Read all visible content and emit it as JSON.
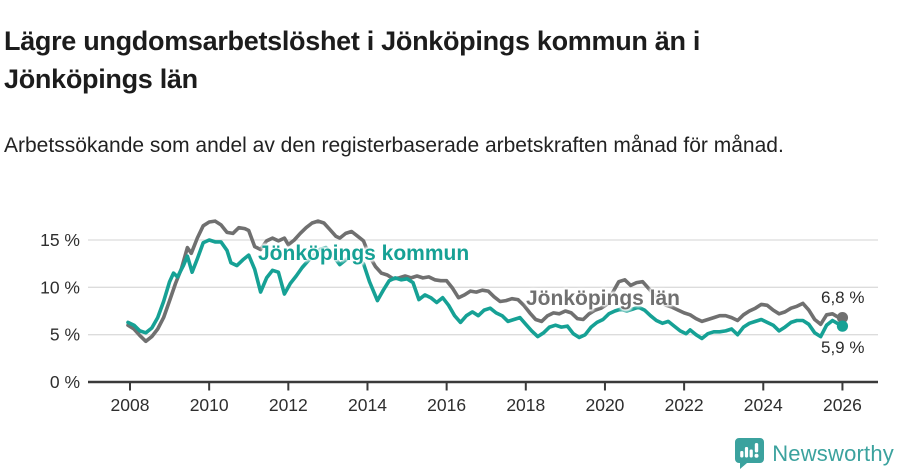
{
  "header": {
    "title_lines": [
      "Lägre ungdomsarbetslöshet i Jönköpings kommun än i",
      "Jönköpings län"
    ],
    "subtitle": "Arbetssökande som andel av den registerbaserade arbetskraften månad för månad."
  },
  "colors": {
    "accent_teal": "#16a195",
    "line_gray": "#707070",
    "grid": "#dcdcdc",
    "axis": "#3a3a3a",
    "tick_text": "#2e2e2e",
    "brand_teal": "#3ba29e"
  },
  "chart_data": {
    "type": "line",
    "x_ticks": [
      2008,
      2010,
      2012,
      2014,
      2016,
      2018,
      2020,
      2022,
      2024,
      2026
    ],
    "x_tick_labels": [
      "2008",
      "2010",
      "2012",
      "2014",
      "2016",
      "2018",
      "2020",
      "2022",
      "2024",
      "2026"
    ],
    "y_ticks": [
      0,
      5,
      10,
      15
    ],
    "y_tick_labels": [
      "0 %",
      "5 %",
      "10 %",
      "15 %"
    ],
    "xlim": [
      2007.9,
      2026.9
    ],
    "ylim": [
      0,
      18
    ],
    "grid": "horizontal",
    "legend_position": "inline-labels",
    "series": [
      {
        "name": "Jönköpings län",
        "color": "#707070",
        "end_label": "6,8 %",
        "end_value": 6.8,
        "points": [
          [
            2007.95,
            6.0
          ],
          [
            2008.1,
            5.6
          ],
          [
            2008.25,
            4.9
          ],
          [
            2008.4,
            4.3
          ],
          [
            2008.55,
            4.8
          ],
          [
            2008.7,
            5.6
          ],
          [
            2008.85,
            6.8
          ],
          [
            2009.0,
            8.6
          ],
          [
            2009.15,
            10.4
          ],
          [
            2009.3,
            12.0
          ],
          [
            2009.45,
            14.2
          ],
          [
            2009.55,
            13.6
          ],
          [
            2009.7,
            15.2
          ],
          [
            2009.85,
            16.5
          ],
          [
            2010.0,
            16.9
          ],
          [
            2010.15,
            17.0
          ],
          [
            2010.3,
            16.6
          ],
          [
            2010.45,
            15.8
          ],
          [
            2010.6,
            15.7
          ],
          [
            2010.75,
            16.3
          ],
          [
            2010.9,
            16.2
          ],
          [
            2011.0,
            16.0
          ],
          [
            2011.15,
            14.3
          ],
          [
            2011.3,
            14.0
          ],
          [
            2011.45,
            14.9
          ],
          [
            2011.6,
            15.2
          ],
          [
            2011.75,
            14.9
          ],
          [
            2011.9,
            15.2
          ],
          [
            2012.0,
            14.5
          ],
          [
            2012.15,
            15.0
          ],
          [
            2012.3,
            15.7
          ],
          [
            2012.45,
            16.3
          ],
          [
            2012.6,
            16.8
          ],
          [
            2012.75,
            17.0
          ],
          [
            2012.9,
            16.8
          ],
          [
            2013.05,
            16.1
          ],
          [
            2013.2,
            15.4
          ],
          [
            2013.3,
            15.2
          ],
          [
            2013.45,
            15.7
          ],
          [
            2013.6,
            15.9
          ],
          [
            2013.75,
            15.4
          ],
          [
            2013.9,
            14.9
          ],
          [
            2014.05,
            13.3
          ],
          [
            2014.2,
            12.2
          ],
          [
            2014.35,
            11.5
          ],
          [
            2014.5,
            11.3
          ],
          [
            2014.65,
            10.9
          ],
          [
            2014.8,
            11.0
          ],
          [
            2014.95,
            11.2
          ],
          [
            2015.1,
            11.0
          ],
          [
            2015.25,
            11.2
          ],
          [
            2015.4,
            11.0
          ],
          [
            2015.55,
            11.1
          ],
          [
            2015.7,
            10.8
          ],
          [
            2015.85,
            10.7
          ],
          [
            2016.0,
            10.7
          ],
          [
            2016.15,
            9.9
          ],
          [
            2016.3,
            8.9
          ],
          [
            2016.45,
            9.2
          ],
          [
            2016.6,
            9.6
          ],
          [
            2016.75,
            9.5
          ],
          [
            2016.9,
            9.7
          ],
          [
            2017.05,
            9.6
          ],
          [
            2017.2,
            9.0
          ],
          [
            2017.35,
            8.5
          ],
          [
            2017.5,
            8.6
          ],
          [
            2017.65,
            8.8
          ],
          [
            2017.8,
            8.7
          ],
          [
            2017.95,
            8.1
          ],
          [
            2018.1,
            7.3
          ],
          [
            2018.25,
            6.6
          ],
          [
            2018.4,
            6.4
          ],
          [
            2018.55,
            7.0
          ],
          [
            2018.7,
            7.3
          ],
          [
            2018.85,
            7.2
          ],
          [
            2019.0,
            7.5
          ],
          [
            2019.15,
            7.3
          ],
          [
            2019.3,
            6.7
          ],
          [
            2019.45,
            6.6
          ],
          [
            2019.6,
            7.2
          ],
          [
            2019.75,
            7.6
          ],
          [
            2019.9,
            7.8
          ],
          [
            2020.05,
            8.2
          ],
          [
            2020.2,
            9.5
          ],
          [
            2020.35,
            10.6
          ],
          [
            2020.5,
            10.8
          ],
          [
            2020.65,
            10.2
          ],
          [
            2020.8,
            10.5
          ],
          [
            2020.95,
            10.6
          ],
          [
            2021.1,
            9.9
          ],
          [
            2021.25,
            9.2
          ],
          [
            2021.4,
            8.5
          ],
          [
            2021.55,
            8.1
          ],
          [
            2021.7,
            7.9
          ],
          [
            2021.85,
            7.6
          ],
          [
            2022.0,
            7.3
          ],
          [
            2022.15,
            7.1
          ],
          [
            2022.3,
            6.7
          ],
          [
            2022.45,
            6.4
          ],
          [
            2022.6,
            6.6
          ],
          [
            2022.75,
            6.8
          ],
          [
            2022.9,
            7.0
          ],
          [
            2023.05,
            7.0
          ],
          [
            2023.2,
            6.8
          ],
          [
            2023.35,
            6.5
          ],
          [
            2023.5,
            7.1
          ],
          [
            2023.65,
            7.5
          ],
          [
            2023.8,
            7.8
          ],
          [
            2023.95,
            8.2
          ],
          [
            2024.1,
            8.1
          ],
          [
            2024.25,
            7.6
          ],
          [
            2024.4,
            7.2
          ],
          [
            2024.55,
            7.4
          ],
          [
            2024.7,
            7.8
          ],
          [
            2024.85,
            8.0
          ],
          [
            2025.0,
            8.3
          ],
          [
            2025.15,
            7.6
          ],
          [
            2025.3,
            6.6
          ],
          [
            2025.45,
            6.1
          ],
          [
            2025.6,
            7.1
          ],
          [
            2025.75,
            7.2
          ],
          [
            2025.87,
            6.9
          ],
          [
            2026.0,
            6.8
          ]
        ]
      },
      {
        "name": "Jönköpings kommun",
        "color": "#16a195",
        "end_label": "5,9 %",
        "end_value": 5.9,
        "points": [
          [
            2007.95,
            6.3
          ],
          [
            2008.1,
            6.0
          ],
          [
            2008.25,
            5.4
          ],
          [
            2008.4,
            5.2
          ],
          [
            2008.55,
            5.7
          ],
          [
            2008.7,
            6.8
          ],
          [
            2008.85,
            8.5
          ],
          [
            2009.0,
            10.6
          ],
          [
            2009.1,
            11.5
          ],
          [
            2009.2,
            11.1
          ],
          [
            2009.35,
            12.3
          ],
          [
            2009.45,
            13.3
          ],
          [
            2009.57,
            11.6
          ],
          [
            2009.7,
            13.0
          ],
          [
            2009.85,
            14.7
          ],
          [
            2010.0,
            15.0
          ],
          [
            2010.15,
            14.8
          ],
          [
            2010.3,
            14.8
          ],
          [
            2010.45,
            13.9
          ],
          [
            2010.55,
            12.6
          ],
          [
            2010.7,
            12.3
          ],
          [
            2010.85,
            12.9
          ],
          [
            2011.0,
            13.4
          ],
          [
            2011.15,
            11.9
          ],
          [
            2011.3,
            9.5
          ],
          [
            2011.45,
            11.0
          ],
          [
            2011.6,
            11.8
          ],
          [
            2011.75,
            11.6
          ],
          [
            2011.9,
            9.3
          ],
          [
            2012.05,
            10.4
          ],
          [
            2012.2,
            11.2
          ],
          [
            2012.35,
            12.1
          ],
          [
            2012.5,
            12.8
          ],
          [
            2012.65,
            13.4
          ],
          [
            2012.8,
            14.0
          ],
          [
            2012.95,
            14.2
          ],
          [
            2013.1,
            13.5
          ],
          [
            2013.3,
            12.4
          ],
          [
            2013.45,
            12.9
          ],
          [
            2013.6,
            13.4
          ],
          [
            2013.75,
            13.0
          ],
          [
            2013.9,
            12.5
          ],
          [
            2014.05,
            10.6
          ],
          [
            2014.25,
            8.6
          ],
          [
            2014.4,
            9.7
          ],
          [
            2014.55,
            10.7
          ],
          [
            2014.7,
            11.0
          ],
          [
            2014.85,
            10.8
          ],
          [
            2015.0,
            10.9
          ],
          [
            2015.15,
            10.5
          ],
          [
            2015.3,
            8.7
          ],
          [
            2015.45,
            9.2
          ],
          [
            2015.6,
            8.9
          ],
          [
            2015.75,
            8.4
          ],
          [
            2015.9,
            8.9
          ],
          [
            2016.05,
            8.1
          ],
          [
            2016.2,
            7.0
          ],
          [
            2016.35,
            6.3
          ],
          [
            2016.5,
            7.0
          ],
          [
            2016.65,
            7.4
          ],
          [
            2016.8,
            7.0
          ],
          [
            2016.95,
            7.6
          ],
          [
            2017.1,
            7.8
          ],
          [
            2017.25,
            7.3
          ],
          [
            2017.4,
            7.0
          ],
          [
            2017.55,
            6.4
          ],
          [
            2017.7,
            6.6
          ],
          [
            2017.85,
            6.8
          ],
          [
            2018.0,
            6.1
          ],
          [
            2018.15,
            5.4
          ],
          [
            2018.3,
            4.8
          ],
          [
            2018.45,
            5.2
          ],
          [
            2018.6,
            5.8
          ],
          [
            2018.75,
            6.0
          ],
          [
            2018.9,
            5.8
          ],
          [
            2019.05,
            5.9
          ],
          [
            2019.2,
            5.1
          ],
          [
            2019.35,
            4.7
          ],
          [
            2019.5,
            5.0
          ],
          [
            2019.65,
            5.8
          ],
          [
            2019.8,
            6.3
          ],
          [
            2019.95,
            6.6
          ],
          [
            2020.1,
            7.2
          ],
          [
            2020.25,
            7.5
          ],
          [
            2020.4,
            7.7
          ],
          [
            2020.55,
            7.5
          ],
          [
            2020.7,
            7.7
          ],
          [
            2020.85,
            7.9
          ],
          [
            2021.0,
            7.6
          ],
          [
            2021.15,
            7.0
          ],
          [
            2021.3,
            6.5
          ],
          [
            2021.45,
            6.2
          ],
          [
            2021.6,
            6.4
          ],
          [
            2021.75,
            5.9
          ],
          [
            2021.9,
            5.4
          ],
          [
            2022.05,
            5.1
          ],
          [
            2022.15,
            5.5
          ],
          [
            2022.3,
            5.0
          ],
          [
            2022.45,
            4.6
          ],
          [
            2022.6,
            5.1
          ],
          [
            2022.75,
            5.3
          ],
          [
            2022.9,
            5.3
          ],
          [
            2023.05,
            5.4
          ],
          [
            2023.2,
            5.6
          ],
          [
            2023.35,
            5.0
          ],
          [
            2023.5,
            5.8
          ],
          [
            2023.65,
            6.2
          ],
          [
            2023.8,
            6.4
          ],
          [
            2023.95,
            6.6
          ],
          [
            2024.1,
            6.3
          ],
          [
            2024.25,
            6.0
          ],
          [
            2024.4,
            5.4
          ],
          [
            2024.55,
            5.8
          ],
          [
            2024.7,
            6.3
          ],
          [
            2024.85,
            6.5
          ],
          [
            2025.0,
            6.5
          ],
          [
            2025.15,
            6.1
          ],
          [
            2025.3,
            5.2
          ],
          [
            2025.45,
            4.8
          ],
          [
            2025.6,
            6.0
          ],
          [
            2025.75,
            6.5
          ],
          [
            2025.87,
            6.2
          ],
          [
            2026.0,
            5.9
          ]
        ]
      }
    ]
  },
  "labels": {
    "kommun": "Jönköpings kommun",
    "lan": "Jönköpings län",
    "end_top": "6,8 %",
    "end_bottom": "5,9 %"
  },
  "footer": {
    "brand": "Newsworthy"
  }
}
